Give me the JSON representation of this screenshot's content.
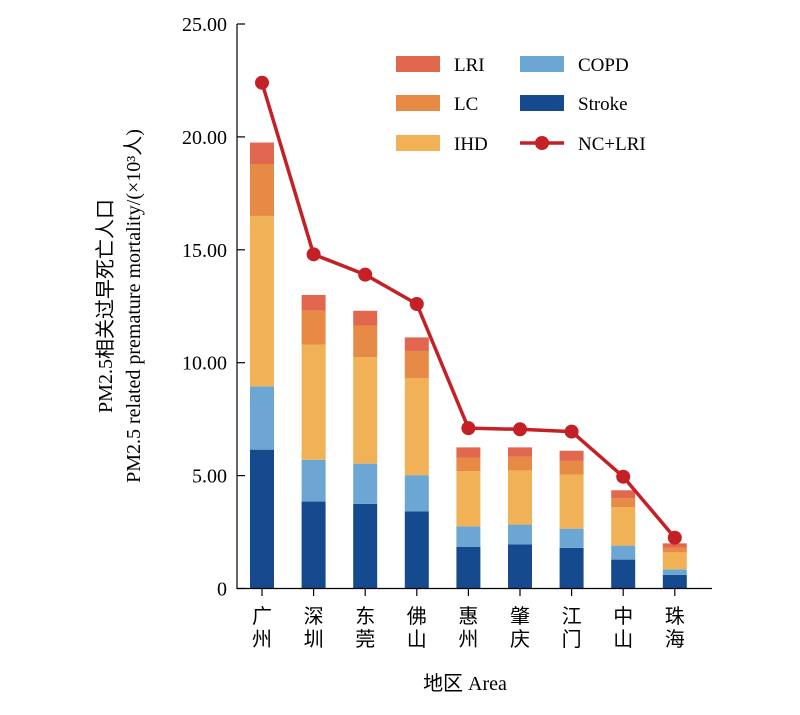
{
  "chart_data": {
    "type": "bar",
    "stacked": true,
    "ylabel_line1": "PM2.5相关过早死亡人口",
    "ylabel_line2": "PM2.5 related premature mortality/(×10³人)",
    "xlabel": "地区 Area",
    "ylim": [
      0,
      25
    ],
    "yticks": [
      "0",
      "5.00",
      "10.00",
      "15.00",
      "20.00",
      "25.00"
    ],
    "ytick_values": [
      0,
      5,
      10,
      15,
      20,
      25
    ],
    "grid": false,
    "legend_position": "top-right",
    "categories": [
      "广州",
      "深圳",
      "东莞",
      "佛山",
      "惠州",
      "肇庆",
      "江门",
      "中山",
      "珠海"
    ],
    "series": [
      {
        "name": "Stroke",
        "color": "#164a8f",
        "values": [
          6.15,
          3.85,
          3.75,
          3.42,
          1.85,
          1.95,
          1.8,
          1.28,
          0.6
        ]
      },
      {
        "name": "COPD",
        "color": "#6ca7d3",
        "values": [
          2.8,
          1.85,
          1.78,
          1.6,
          0.9,
          0.88,
          0.85,
          0.62,
          0.25
        ]
      },
      {
        "name": "IHD",
        "color": "#f1b157",
        "values": [
          7.55,
          5.1,
          4.72,
          4.3,
          2.45,
          2.4,
          2.4,
          1.7,
          0.75
        ]
      },
      {
        "name": "LC",
        "color": "#e68a45",
        "values": [
          2.3,
          1.5,
          1.4,
          1.2,
          0.6,
          0.6,
          0.6,
          0.4,
          0.2
        ]
      },
      {
        "name": "LRI",
        "color": "#e2674f",
        "values": [
          0.95,
          0.7,
          0.65,
          0.6,
          0.45,
          0.42,
          0.45,
          0.35,
          0.2
        ]
      }
    ],
    "line_series": {
      "name": "NC+LRI",
      "color": "#c42026",
      "values": [
        22.4,
        14.8,
        13.9,
        12.6,
        7.1,
        7.05,
        6.95,
        4.95,
        2.25
      ]
    },
    "legend": [
      {
        "label": "LRI",
        "kind": "bar",
        "color": "#e2674f"
      },
      {
        "label": "COPD",
        "kind": "bar",
        "color": "#6ca7d3"
      },
      {
        "label": "LC",
        "kind": "bar",
        "color": "#e68a45"
      },
      {
        "label": "Stroke",
        "kind": "bar",
        "color": "#164a8f"
      },
      {
        "label": "IHD",
        "kind": "bar",
        "color": "#f1b157"
      },
      {
        "label": "NC+LRI",
        "kind": "line",
        "color": "#c42026"
      }
    ]
  }
}
